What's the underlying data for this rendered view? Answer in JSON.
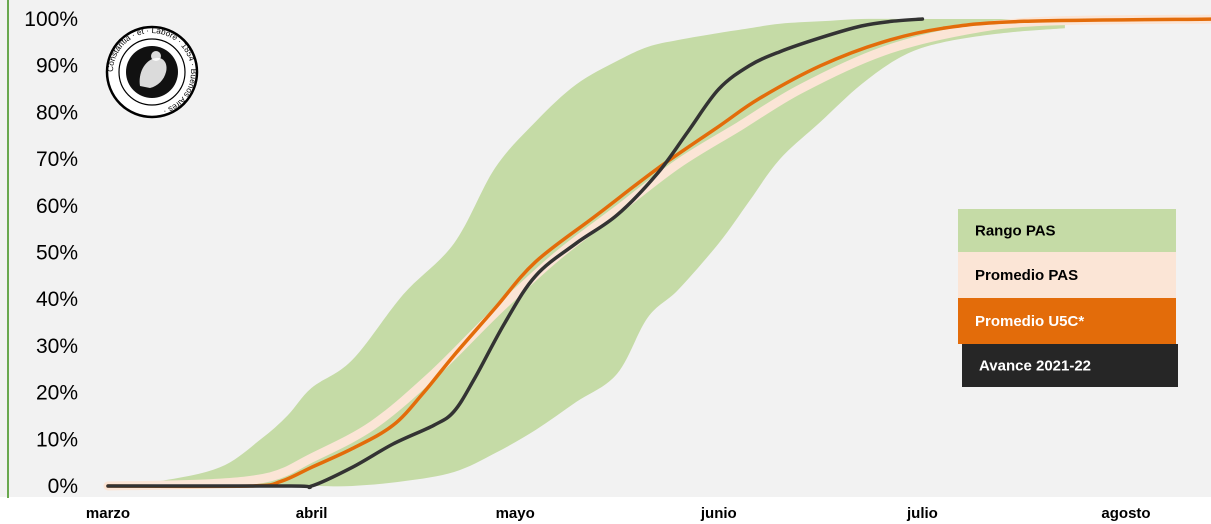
{
  "chart_data": {
    "type": "area",
    "title": "",
    "xlabel": "",
    "ylabel": "",
    "x_axis": {
      "tick_labels": [
        "marzo",
        "abril",
        "mayo",
        "junio",
        "julio",
        "agosto"
      ],
      "range": [
        0,
        5.45
      ]
    },
    "y_axis": {
      "tick_labels": [
        "0%",
        "10%",
        "20%",
        "30%",
        "40%",
        "50%",
        "60%",
        "70%",
        "80%",
        "90%",
        "100%"
      ],
      "range": [
        0,
        100
      ]
    },
    "grid": false,
    "legend_placement": "right",
    "series": [
      {
        "name": "Rango PAS",
        "kind": "band",
        "color": "#c5dba6",
        "x": [
          0,
          0.25,
          0.55,
          0.75,
          0.88,
          1.0,
          1.2,
          1.45,
          1.7,
          1.9,
          2.1,
          2.3,
          2.5,
          2.65,
          2.8,
          3.0,
          3.15,
          3.3,
          3.5,
          3.7,
          3.9,
          4.1,
          4.4,
          4.7
        ],
        "lower": [
          0,
          0,
          0,
          0,
          0,
          0,
          0,
          1,
          3,
          7,
          12,
          18,
          24,
          36,
          42,
          52,
          61,
          70,
          78,
          86,
          92,
          95,
          97,
          98
        ],
        "upper": [
          0,
          1,
          4,
          10,
          15,
          21,
          27,
          41,
          52,
          68,
          78,
          86,
          91,
          94,
          95.5,
          97,
          98,
          99,
          99.5,
          100,
          100,
          100,
          100,
          100
        ]
      },
      {
        "name": "Promedio PAS",
        "kind": "line",
        "color": "#fbe5d6",
        "x": [
          0,
          0.5,
          0.8,
          1.0,
          1.3,
          1.6,
          1.9,
          2.2,
          2.5,
          2.8,
          3.1,
          3.4,
          3.8,
          4.2,
          4.6,
          5.45
        ],
        "y": [
          0,
          0.5,
          2,
          6,
          13,
          24,
          37,
          49,
          59,
          69,
          77,
          85,
          93,
          97.5,
          99.5,
          100
        ]
      },
      {
        "name": "Promedio U5C*",
        "kind": "line",
        "color": "#e36c0a",
        "x": [
          0,
          0.7,
          0.85,
          1.0,
          1.2,
          1.4,
          1.55,
          1.7,
          1.9,
          2.1,
          2.4,
          2.7,
          3.0,
          3.2,
          3.5,
          3.8,
          4.1,
          4.5,
          5.45
        ],
        "y": [
          0,
          0,
          1,
          4,
          8,
          13,
          20,
          28,
          38,
          48,
          58,
          68,
          77,
          83,
          90,
          95,
          98,
          99.5,
          100
        ]
      },
      {
        "name": "Avance 2021-22",
        "kind": "line",
        "color": "#333333",
        "x": [
          0,
          0.9,
          1.0,
          1.2,
          1.4,
          1.6,
          1.7,
          1.8,
          1.95,
          2.1,
          2.3,
          2.5,
          2.7,
          2.85,
          3.0,
          3.15,
          3.3,
          3.5,
          3.7,
          3.85,
          4.0
        ],
        "y": [
          0,
          0,
          0,
          4,
          9,
          13,
          16,
          23,
          35,
          45,
          52,
          58,
          67,
          76,
          85,
          90,
          93,
          96,
          98.5,
          99.5,
          100
        ]
      }
    ]
  },
  "legend": {
    "items": [
      {
        "label": "Rango PAS",
        "bg": "#c5dba6",
        "fg": "#000000"
      },
      {
        "label": "Promedio PAS",
        "bg": "#fbe5d6",
        "fg": "#000000"
      },
      {
        "label": "Promedio U5C*",
        "bg": "#e36c0a",
        "fg": "#ffffff"
      },
      {
        "label": "Avance 2021-22",
        "bg": "#262626",
        "fg": "#ffffff"
      }
    ]
  },
  "logo": {
    "text": "Constantia · et · Labore · 1854 · Buenos Aires ·"
  },
  "colors": {
    "plot_background": "#f2f2f2",
    "left_rule": "#6aa84f"
  }
}
